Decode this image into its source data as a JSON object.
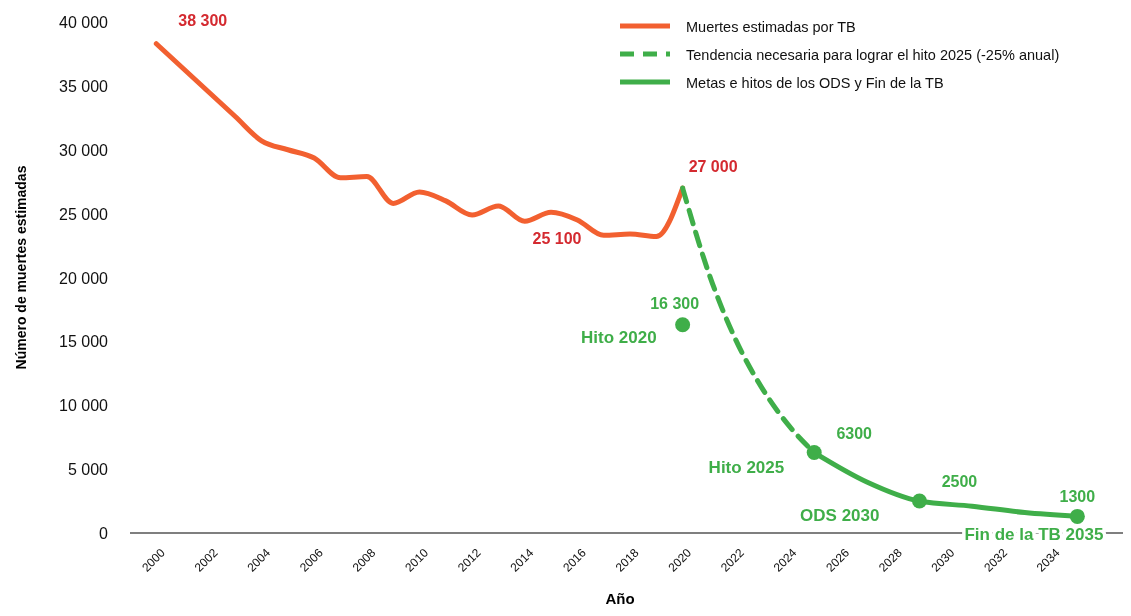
{
  "chart_data": {
    "type": "line",
    "xlabel": "Año",
    "ylabel": "Número de muertes estimadas",
    "xlim": [
      1999,
      2037
    ],
    "xticks": [
      2000,
      2002,
      2004,
      2006,
      2008,
      2010,
      2012,
      2014,
      2016,
      2018,
      2020,
      2022,
      2024,
      2026,
      2028,
      2030,
      2032,
      2034
    ],
    "ylim": [
      0,
      40000
    ],
    "yticks": [
      0,
      {
        "value": 5000,
        "label": "5 000"
      },
      {
        "value": 10000,
        "label": "10 000"
      },
      {
        "value": 15000,
        "label": "15 000"
      },
      {
        "value": 20000,
        "label": "20 000"
      },
      {
        "value": 25000,
        "label": "25 000"
      },
      {
        "value": 30000,
        "label": "30 000"
      },
      {
        "value": 35000,
        "label": "35 000"
      },
      {
        "value": 40000,
        "label": "40 000"
      }
    ],
    "legend": "top right",
    "grid": false,
    "series": [
      {
        "name": "Muertes estimadas por TB",
        "color": "#f26030",
        "x": [
          2000,
          2001,
          2002,
          2003,
          2004,
          2005,
          2006,
          2007,
          2008,
          2009,
          2010,
          2011,
          2012,
          2013,
          2014,
          2015,
          2016,
          2017,
          2018,
          2019,
          2020
        ],
        "values": [
          38300,
          36400,
          34500,
          32600,
          30700,
          30000,
          29350,
          27800,
          27900,
          25800,
          26700,
          26000,
          24900,
          25600,
          24400,
          25100,
          24500,
          23300,
          23400,
          23200,
          27000
        ],
        "value_labels": [
          "38 300",
          null,
          null,
          null,
          null,
          null,
          null,
          null,
          null,
          null,
          null,
          null,
          null,
          null,
          null,
          "25 100",
          null,
          null,
          null,
          null,
          "27 000"
        ]
      },
      {
        "name": "Tendencia necesaria para lograr el hito 2025 (-25% anual)",
        "color": "#3fae49",
        "line_style": "dashed",
        "x": [
          2020,
          2021,
          2022,
          2023,
          2024,
          2025
        ],
        "values": [
          27000,
          20300,
          15200,
          11400,
          8500,
          6300
        ]
      },
      {
        "name": "Metas e hitos de los ODS y Fin de la TB",
        "color": "#3fae49",
        "x": [
          2025,
          2027,
          2029,
          2031,
          2033,
          2035
        ],
        "values": [
          6300,
          4000,
          2500,
          2100,
          1600,
          1300
        ]
      },
      {
        "type": "scatter",
        "marker": "circle",
        "color": "#3fae49",
        "x": [
          2020,
          2025,
          2029,
          2035
        ],
        "values": [
          16300,
          6300,
          2500,
          1300
        ],
        "value_labels": [
          "16 300",
          "6300",
          "2500",
          "1300"
        ]
      }
    ],
    "annotations": [
      {
        "text": "Hito 2020",
        "x": 2020,
        "y": 16300
      },
      {
        "text": "Hito 2025",
        "x": 2025,
        "y": 6300
      },
      {
        "text": "ODS 2030",
        "x": 2029,
        "y": 2500
      },
      {
        "text": "Fin de la TB 2035",
        "x": 2035,
        "y": 1300
      }
    ]
  }
}
